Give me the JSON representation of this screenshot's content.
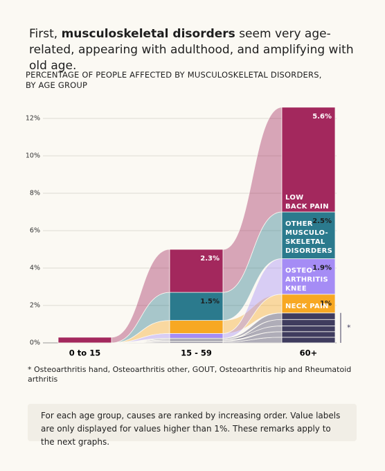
{
  "chart_data": {
    "type": "stacked-flow-bar",
    "title": {
      "lead": "First,",
      "bold": "musculoskeletal disorders",
      "rest": "seem very age-related, appearing with adulthood, and amplifying with old age."
    },
    "subtitle": [
      "PERCENTAGE OF PEOPLE AFFECTED BY MUSCULOSKELETAL DISORDERS,",
      "BY AGE GROUP"
    ],
    "categories": [
      "0 to 15",
      "15 - 59",
      "60+"
    ],
    "ylim": [
      0,
      13
    ],
    "yticks": [
      {
        "value": 0,
        "label": "0%"
      },
      {
        "value": 2,
        "label": "2%"
      },
      {
        "value": 4,
        "label": "4%"
      },
      {
        "value": 6,
        "label": "6%"
      },
      {
        "value": 8,
        "label": "8%"
      },
      {
        "value": 10,
        "label": "10%"
      },
      {
        "value": 12,
        "label": "12%"
      }
    ],
    "grid": true,
    "series": [
      {
        "color": "#3f3c5e",
        "values": [
          0,
          0.05,
          0.3
        ]
      },
      {
        "color": "#3f3c5e",
        "values": [
          0,
          0.05,
          0.3
        ]
      },
      {
        "color": "#3f3c5e",
        "values": [
          0,
          0.05,
          0.35
        ]
      },
      {
        "color": "#3f3c5e",
        "values": [
          0,
          0.05,
          0.3
        ]
      },
      {
        "color": "#3f3c5e",
        "values": [
          0,
          0.05,
          0.35
        ]
      },
      {
        "name": [
          "NECK PAIN"
        ],
        "color": "#f7a823",
        "label_color": "#1e1e1e",
        "values": [
          0,
          0.7,
          1.0
        ],
        "value_labels": [
          null,
          null,
          "1%"
        ]
      },
      {
        "name": [
          "OSTEO-",
          "ARTHRITIS",
          "KNEE"
        ],
        "color": "#a58cf5",
        "label_color": "#1e1e1e",
        "values": [
          0,
          0.25,
          1.9
        ],
        "value_labels": [
          null,
          null,
          "1.9%"
        ]
      },
      {
        "name": [
          "OTHER",
          "MUSCULO-",
          "SKELETAL",
          "DISORDERS"
        ],
        "color": "#2b7a8d",
        "label_color": "#1e1e1e",
        "values": [
          0,
          1.5,
          2.5
        ],
        "value_labels": [
          null,
          "1.5%",
          "2.5%"
        ]
      },
      {
        "name": [
          "LOW",
          "BACK PAIN"
        ],
        "color": "#a3285d",
        "label_color": "#ffffff",
        "values": [
          0.3,
          2.3,
          5.6
        ],
        "value_labels": [
          null,
          "2.3%",
          "5.6%"
        ]
      }
    ],
    "others_marker": "*",
    "footnote": "* Osteoarthritis hand, Osteoarthritis other, GOUT, Osteoarthritis hip and Rheumatoid arthritis",
    "note": "For each age group, causes are ranked by increasing order. Value labels are only displayed for values higher than 1%. These remarks apply to the next graphs."
  }
}
